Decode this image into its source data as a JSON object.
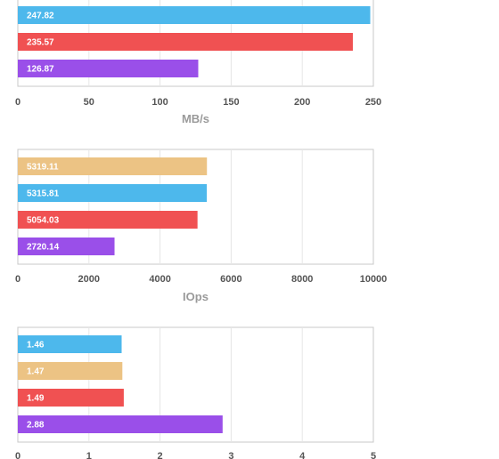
{
  "colors": {
    "blue": "#4db8ec",
    "red": "#f05152",
    "purple": "#9a4fe9",
    "tan": "#ecc384",
    "grid": "#e6e6e6",
    "frame": "#c8c8c8"
  },
  "chart_data": [
    {
      "type": "bar",
      "orientation": "horizontal",
      "xlabel": "MB/s",
      "xlim": [
        0,
        250
      ],
      "ticks": [
        0,
        50,
        100,
        150,
        200,
        250
      ],
      "grid": true,
      "bars": [
        {
          "value": 247.82,
          "label": "247.82",
          "color": "blue"
        },
        {
          "value": 235.57,
          "label": "235.57",
          "color": "red"
        },
        {
          "value": 126.87,
          "label": "126.87",
          "color": "purple"
        }
      ]
    },
    {
      "type": "bar",
      "orientation": "horizontal",
      "xlabel": "IOps",
      "xlim": [
        0,
        10000
      ],
      "ticks": [
        0,
        2000,
        4000,
        6000,
        8000,
        10000
      ],
      "grid": true,
      "bars": [
        {
          "value": 5319.11,
          "label": "5319.11",
          "color": "tan"
        },
        {
          "value": 5315.81,
          "label": "5315.81",
          "color": "blue"
        },
        {
          "value": 5054.03,
          "label": "5054.03",
          "color": "red"
        },
        {
          "value": 2720.14,
          "label": "2720.14",
          "color": "purple"
        }
      ]
    },
    {
      "type": "bar",
      "orientation": "horizontal",
      "xlabel": "",
      "xlim": [
        0,
        5
      ],
      "ticks": [
        0,
        1,
        2,
        3,
        4,
        5
      ],
      "grid": true,
      "bars": [
        {
          "value": 1.46,
          "label": "1.46",
          "color": "blue"
        },
        {
          "value": 1.47,
          "label": "1.47",
          "color": "tan"
        },
        {
          "value": 1.49,
          "label": "1.49",
          "color": "red"
        },
        {
          "value": 2.88,
          "label": "2.88",
          "color": "purple"
        }
      ]
    }
  ]
}
